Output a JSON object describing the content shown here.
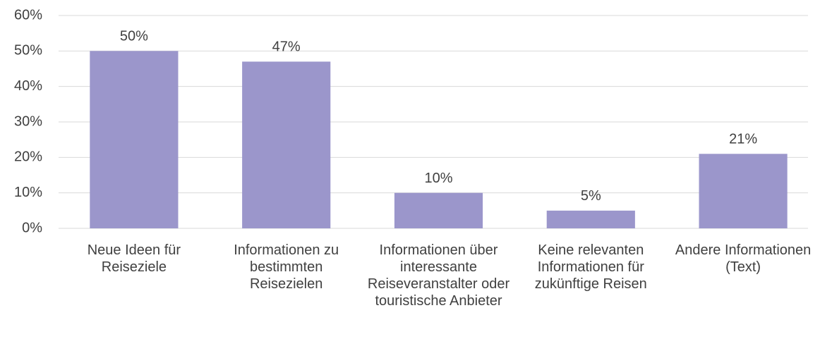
{
  "chart_data": {
    "type": "bar",
    "categories": [
      "Neue Ideen für Reiseziele",
      "Informationen zu bestimmten Reisezielen",
      "Informationen über interessante Reiseveranstalter oder touristische Anbieter",
      "Keine relevanten Informationen für zukünftige Reisen",
      "Andere Informationen (Text)"
    ],
    "values": [
      50,
      47,
      10,
      5,
      21
    ],
    "value_labels": [
      "50%",
      "47%",
      "10%",
      "5%",
      "21%"
    ],
    "color": "#9b96cb",
    "ylim": [
      0,
      60
    ],
    "yticks": [
      {
        "value": 0,
        "label": "0%"
      },
      {
        "value": 10,
        "label": "10%"
      },
      {
        "value": 20,
        "label": "20%"
      },
      {
        "value": 30,
        "label": "30%"
      },
      {
        "value": 40,
        "label": "40%"
      },
      {
        "value": 50,
        "label": "50%"
      },
      {
        "value": 60,
        "label": "60%"
      }
    ],
    "grid": true
  }
}
